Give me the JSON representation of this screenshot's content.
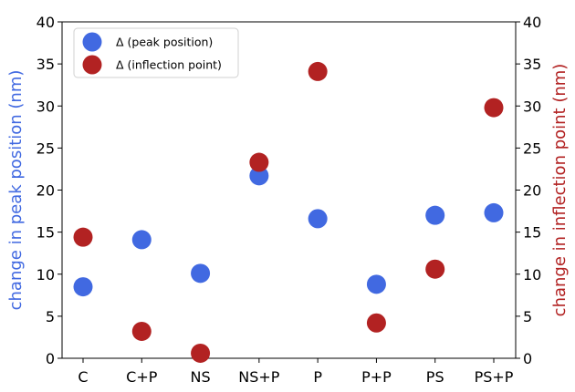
{
  "chart_data": {
    "type": "scatter",
    "categories": [
      "C",
      "C+P",
      "NS",
      "NS+P",
      "P",
      "P+P",
      "PS",
      "PS+P"
    ],
    "series": [
      {
        "name": "Δ (peak position)",
        "axis": "left",
        "color": "#4169e1",
        "values": [
          8.5,
          14.1,
          10.1,
          21.7,
          16.6,
          8.8,
          17.0,
          17.3
        ]
      },
      {
        "name": "Δ (inflection point)",
        "axis": "right",
        "color": "#b22222",
        "values": [
          14.4,
          3.2,
          0.6,
          23.3,
          34.1,
          4.2,
          10.6,
          29.8
        ]
      }
    ],
    "ylabel_left": "change in peak position (nm)",
    "ylabel_right": "change in inflection point (nm)",
    "ylim_left": [
      0,
      40
    ],
    "ylim_right": [
      0,
      40
    ],
    "yticks": [
      0,
      5,
      10,
      15,
      20,
      25,
      30,
      35,
      40
    ],
    "grid": false,
    "legend_position": "top-left"
  }
}
